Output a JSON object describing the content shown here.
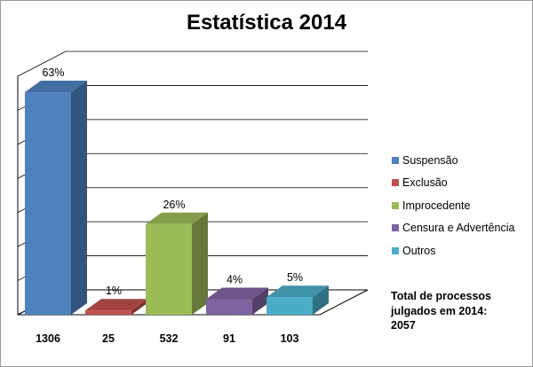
{
  "chart_data": {
    "type": "bar",
    "title": "Estatística 2014",
    "xlabel": "",
    "ylabel": "",
    "categories": [
      "Suspensão",
      "Exclusão",
      "Improcedente",
      "Censura e Advertência",
      "Outros"
    ],
    "values": [
      1306,
      25,
      532,
      91,
      103
    ],
    "percent_labels": [
      "63%",
      "1%",
      "26%",
      "4%",
      "5%"
    ],
    "category_tick_labels": [
      "1306",
      "25",
      "532",
      "91",
      "103"
    ],
    "colors": [
      "#4f81bd",
      "#c0504d",
      "#9bbb59",
      "#8064a2",
      "#4bacc6"
    ],
    "style": "3d-column",
    "varies_colors_by_category": true,
    "ylim": [
      0,
      1400
    ],
    "grid": true,
    "y_axis_tick_labels_shown": false,
    "legend_position": "right",
    "annotation": [
      "Total de processos",
      "julgados em 2014:",
      "2057"
    ]
  }
}
